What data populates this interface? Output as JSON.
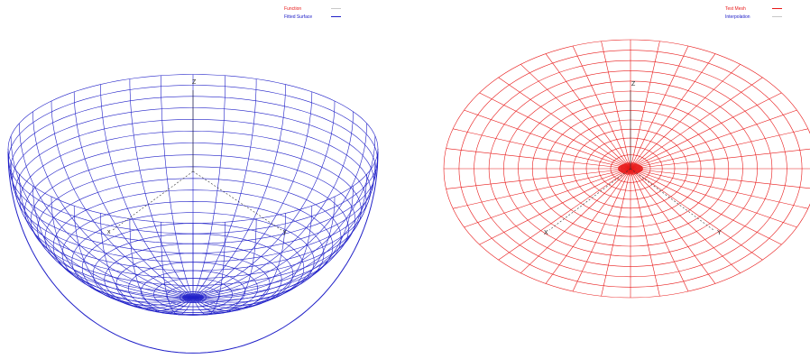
{
  "colors": {
    "left_mesh": "#2020c8",
    "right_mesh": "#e81818",
    "axis": "#303030"
  },
  "left_plot": {
    "legend": [
      {
        "label": "Function",
        "color": "#e81818",
        "swatch": "#c8c8c8"
      },
      {
        "label": "Fitted Surface",
        "color": "#2020c8",
        "swatch": "#2020c8"
      }
    ],
    "axis_labels": {
      "z": "Z",
      "x": "x",
      "y": "y"
    }
  },
  "right_plot": {
    "legend": [
      {
        "label": "Test Mesh",
        "color": "#e81818",
        "swatch": "#e81818"
      },
      {
        "label": "Interpolation",
        "color": "#2020c8",
        "swatch": "#c8c8c8"
      }
    ],
    "axis_labels": {
      "z": "Z",
      "x": "X",
      "y": "Y"
    }
  }
}
